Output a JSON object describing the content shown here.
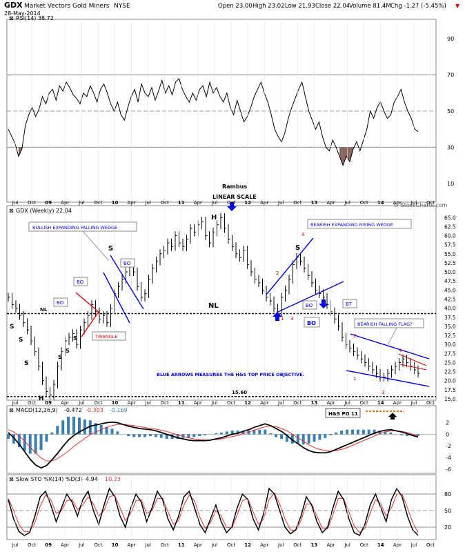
{
  "header": {
    "symbol": "GDX",
    "name": "Market Vectors Gold Miners",
    "exchange": "NYSE",
    "date": "28-May-2014",
    "open": "Open 23.00",
    "high": "High 23.02",
    "low": "Low 21.93",
    "close": "Close 22.04",
    "volume": "Volume 81.4M",
    "chg": "Chg -1.27 (-5.45%)",
    "chg_arrow": "▼",
    "watermark": "© StockCharts.com"
  },
  "colors": {
    "price": "#000000",
    "rsi_fill": "#8a6a60",
    "macd_hist": "#3a7fb0",
    "signal": "#e83030",
    "annot_blue": "#0000dd",
    "annot_red": "#dd0000",
    "grid": "#bbbbbb"
  },
  "annotations": {
    "rambus": "Rambus",
    "linear_scale": "LINEAR SCALE",
    "bullish_wedge": "BULLISH EXPANDING FALLING WEDGE",
    "bearish_rising": "BEARISH EXPANDING RISING WEDGE",
    "bearish_flag": "BEARISH FALLING FLAG?",
    "blue_arrows": "BLUE ARROWS MEASURES THE H&S TOP PRICE OBJECTIVE.",
    "triangle": "TRIANGLE",
    "nl": "NL",
    "bo": "BO",
    "bt": "BT",
    "hs_po": "H&S PO 11",
    "h": "H",
    "s": "S",
    "low_label": "15.60",
    "n1": "1",
    "n2": "2",
    "n3": "3",
    "n4": "4"
  },
  "chart_data": [
    {
      "type": "line",
      "title": "RSI(14) 38.72",
      "y_ticks": [
        "90",
        "70",
        "50",
        "30",
        "10"
      ],
      "ylim": [
        0,
        100
      ],
      "levels": [
        70,
        50,
        30
      ],
      "x": [
        0,
        1,
        2,
        3,
        4,
        5,
        6,
        7,
        8,
        9,
        10,
        11,
        12,
        13,
        14,
        15,
        16,
        17,
        18,
        19,
        20,
        21,
        22,
        23,
        24,
        25,
        26,
        27,
        28,
        29,
        30,
        31,
        32,
        33,
        34,
        35,
        36,
        37,
        38,
        39,
        40,
        41,
        42,
        43,
        44,
        45,
        46,
        47,
        48,
        49,
        50,
        51,
        52,
        53,
        54,
        55,
        56,
        57,
        58,
        59,
        60,
        61,
        62,
        63,
        64,
        65,
        66,
        67,
        68,
        69,
        70,
        71,
        72,
        73,
        74,
        75,
        76,
        77,
        78,
        79,
        80,
        81,
        82,
        83,
        84,
        85,
        86,
        87,
        88,
        89,
        90,
        91,
        92,
        93,
        94,
        95,
        96,
        97,
        98,
        99,
        100,
        101,
        102,
        103,
        104,
        105,
        106,
        107,
        108,
        109,
        110,
        111,
        112,
        113,
        114,
        115,
        116,
        117,
        118,
        119,
        120
      ],
      "values": [
        40,
        36,
        32,
        25,
        29,
        42,
        48,
        52,
        47,
        51,
        58,
        54,
        60,
        62,
        56,
        64,
        61,
        66,
        63,
        59,
        57,
        54,
        60,
        58,
        64,
        60,
        55,
        62,
        65,
        60,
        54,
        50,
        55,
        48,
        45,
        52,
        58,
        62,
        55,
        65,
        60,
        58,
        63,
        56,
        61,
        67,
        60,
        64,
        59,
        66,
        68,
        62,
        58,
        55,
        60,
        56,
        62,
        64,
        58,
        66,
        60,
        63,
        58,
        55,
        60,
        52,
        48,
        56,
        50,
        44,
        47,
        52,
        58,
        62,
        66,
        60,
        55,
        48,
        40,
        36,
        33,
        38,
        46,
        52,
        57,
        62,
        66,
        58,
        50,
        45,
        40,
        44,
        36,
        30,
        28,
        34,
        30,
        25,
        20,
        25,
        22,
        29,
        33,
        28,
        34,
        40,
        50,
        46,
        52,
        55,
        50,
        46,
        48,
        55,
        58,
        62,
        55,
        50,
        46,
        40,
        38.72
      ],
      "series": [
        {
          "values_ref": "values"
        }
      ]
    },
    {
      "type": "line",
      "title": "GDX (Weekly) 22.04",
      "x_ticks": [
        "Jul",
        "Oct",
        "09",
        "Apr",
        "Jul",
        "Oct",
        "10",
        "Apr",
        "Jul",
        "Oct",
        "11",
        "Apr",
        "Jul",
        "Oct",
        "12",
        "Apr",
        "Jul",
        "Oct",
        "13",
        "Apr",
        "Jul",
        "Oct",
        "14",
        "Apr",
        "Jul",
        "Oct"
      ],
      "y_ticks": [
        "65.0",
        "62.5",
        "60.0",
        "57.5",
        "55.0",
        "52.5",
        "50.0",
        "47.5",
        "45.0",
        "42.5",
        "40.0",
        "37.5",
        "35.0",
        "32.5",
        "30.0",
        "27.5",
        "25.0",
        "22.5",
        "20.0",
        "17.5",
        "15.0"
      ],
      "ylim": [
        15,
        66
      ],
      "neckline": 38.5,
      "low_line": 15.6,
      "values": [
        43,
        41,
        40,
        38,
        36,
        34,
        31,
        28,
        24,
        20,
        17,
        16,
        19,
        24,
        28,
        31,
        32,
        33,
        30,
        34,
        36,
        38,
        41,
        39,
        37,
        38,
        36,
        40,
        44,
        46,
        48,
        50,
        52,
        50,
        46,
        43,
        44,
        48,
        51,
        53,
        55,
        56,
        58,
        57,
        60,
        58,
        57,
        59,
        62,
        61,
        63,
        64,
        60,
        58,
        61,
        63,
        65,
        62,
        59,
        57,
        55,
        54,
        56,
        52,
        50,
        48,
        47,
        45,
        43,
        42,
        40,
        39,
        43,
        45,
        48,
        52,
        54,
        53,
        51,
        49,
        47,
        45,
        44,
        43,
        41,
        39,
        37,
        35,
        32,
        30,
        29,
        28,
        27,
        26,
        25,
        24,
        23,
        22,
        21,
        21,
        22,
        23,
        24,
        25,
        26,
        25,
        24,
        23,
        22.04
      ]
    },
    {
      "type": "line",
      "title_prefix": "MACD(12,26,9)",
      "macd": "-0.472",
      "signal": "-0.303",
      "hist": "-0.169",
      "y_ticks": [
        "2",
        "0",
        "-2",
        "-4",
        "-6"
      ],
      "ylim": [
        -6.5,
        3.5
      ],
      "macd_values": [
        0.3,
        -0.6,
        -1.7,
        -3,
        -4.3,
        -5.3,
        -5.8,
        -5.4,
        -4.4,
        -3.3,
        -2.1,
        -1,
        -0.2,
        0.4,
        0.9,
        1.4,
        1.6,
        1.8,
        2,
        2.1,
        2,
        1.7,
        1.4,
        1.2,
        1,
        0.9,
        0.8,
        0.6,
        0.3,
        0,
        -0.3,
        -0.6,
        -0.8,
        -1,
        -1.1,
        -1.1,
        -1.1,
        -1,
        -0.8,
        -0.6,
        -0.3,
        0,
        0.2,
        0.5,
        0.8,
        1.2,
        1.5,
        1.8,
        1.5,
        1,
        0.5,
        -0.2,
        -1,
        -1.6,
        -2.3,
        -2.8,
        -3.1,
        -3.2,
        -3.2,
        -3,
        -2.6,
        -2.2,
        -1.8,
        -1.4,
        -1,
        -0.6,
        -0.2,
        0.2,
        0.5,
        0.7,
        0.8,
        0.6,
        0.4,
        0.1,
        -0.2,
        -0.472
      ],
      "signal_values": [
        0.8,
        0.4,
        -0.3,
        -1.2,
        -2.2,
        -3.2,
        -4.1,
        -4.6,
        -4.6,
        -4.2,
        -3.6,
        -2.9,
        -2.1,
        -1.4,
        -0.7,
        -0.1,
        0.4,
        0.8,
        1.2,
        1.5,
        1.7,
        1.7,
        1.6,
        1.5,
        1.3,
        1.2,
        1,
        0.9,
        0.7,
        0.5,
        0.2,
        -0.1,
        -0.4,
        -0.6,
        -0.8,
        -0.9,
        -1,
        -1,
        -0.9,
        -0.8,
        -0.6,
        -0.4,
        -0.2,
        0.1,
        0.4,
        0.7,
        1,
        1.3,
        1.4,
        1.3,
        1,
        0.6,
        0,
        -0.6,
        -1.2,
        -1.8,
        -2.3,
        -2.6,
        -2.8,
        -2.9,
        -2.8,
        -2.6,
        -2.3,
        -1.9,
        -1.5,
        -1.1,
        -0.7,
        -0.3,
        0.1,
        0.4,
        0.6,
        0.6,
        0.5,
        0.3,
        0,
        -0.303
      ]
    },
    {
      "type": "line",
      "title_prefix": "Slow STO %K(14) %D(3)",
      "k": "4.94",
      "d": "10.23",
      "y_ticks": [
        "80",
        "50",
        "20"
      ],
      "ylim": [
        0,
        100
      ],
      "k_values": [
        70,
        35,
        12,
        5,
        10,
        40,
        75,
        85,
        60,
        30,
        55,
        80,
        65,
        40,
        70,
        85,
        50,
        25,
        60,
        90,
        75,
        40,
        20,
        55,
        80,
        65,
        30,
        55,
        85,
        70,
        35,
        15,
        40,
        75,
        85,
        55,
        25,
        10,
        35,
        60,
        30,
        10,
        20,
        55,
        80,
        70,
        35,
        15,
        45,
        90,
        80,
        50,
        20,
        8,
        15,
        40,
        75,
        60,
        30,
        10,
        20,
        55,
        85,
        70,
        35,
        10,
        5,
        25,
        60,
        80,
        55,
        30,
        70,
        90,
        75,
        40,
        15,
        4.94
      ],
      "d_values": [
        72,
        50,
        25,
        12,
        12,
        28,
        58,
        78,
        70,
        45,
        50,
        68,
        70,
        52,
        60,
        75,
        62,
        40,
        50,
        75,
        78,
        55,
        32,
        45,
        68,
        70,
        45,
        50,
        72,
        72,
        48,
        25,
        32,
        60,
        78,
        68,
        38,
        18,
        28,
        50,
        40,
        20,
        18,
        42,
        68,
        72,
        48,
        25,
        35,
        70,
        82,
        62,
        35,
        15,
        14,
        32,
        62,
        62,
        40,
        18,
        17,
        42,
        72,
        72,
        48,
        22,
        10,
        18,
        45,
        70,
        62,
        40,
        55,
        80,
        80,
        55,
        28,
        10.23
      ]
    }
  ]
}
